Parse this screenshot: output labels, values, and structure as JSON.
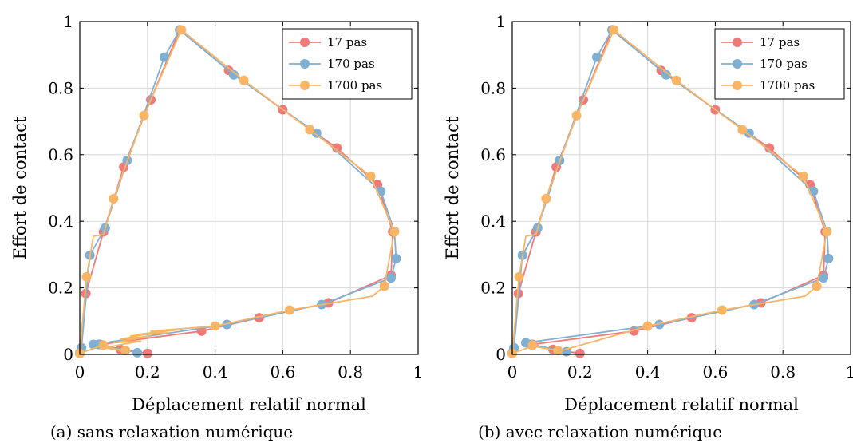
{
  "figure": {
    "captions": [
      "(a) sans relaxation numérique",
      "(b) avec relaxation numérique"
    ]
  },
  "chart_data": [
    {
      "type": "line",
      "title": "",
      "caption": "(a) sans relaxation numérique",
      "xlabel": "Déplacement relatif normal",
      "ylabel": "Effort de contact",
      "xlim": [
        0,
        1
      ],
      "ylim": [
        0,
        1
      ],
      "xticks": [
        "0",
        "0.2",
        "0.4",
        "0.6",
        "0.8",
        "1"
      ],
      "yticks": [
        "0",
        "0.2",
        "0.4",
        "0.6",
        "0.8",
        "1"
      ],
      "grid": true,
      "legend_position": "top-right",
      "series": [
        {
          "name": "17 pas",
          "color": "#f07a78",
          "points": [
            [
              0.2,
              0.003
            ],
            [
              0.12,
              0.015
            ],
            [
              0.06,
              0.03
            ],
            [
              0.36,
              0.07
            ],
            [
              0.53,
              0.11
            ],
            [
              0.735,
              0.155
            ],
            [
              0.92,
              0.238
            ],
            [
              0.925,
              0.368
            ],
            [
              0.88,
              0.51
            ],
            [
              0.76,
              0.62
            ],
            [
              0.6,
              0.735
            ],
            [
              0.44,
              0.853
            ],
            [
              0.295,
              0.975
            ],
            [
              0.21,
              0.765
            ],
            [
              0.13,
              0.563
            ],
            [
              0.07,
              0.368
            ],
            [
              0.018,
              0.183
            ],
            [
              0.0,
              0.003
            ]
          ]
        },
        {
          "name": "170 pas",
          "color": "#7fb0d3",
          "points": [
            [
              0.17,
              0.005
            ],
            [
              0.055,
              0.03
            ],
            [
              0.04,
              0.03
            ],
            [
              0.435,
              0.09
            ],
            [
              0.715,
              0.15
            ],
            [
              0.92,
              0.23
            ],
            [
              0.935,
              0.288
            ],
            [
              0.93,
              0.37
            ],
            [
              0.89,
              0.49
            ],
            [
              0.7,
              0.665
            ],
            [
              0.455,
              0.84
            ],
            [
              0.295,
              0.975
            ],
            [
              0.25,
              0.893
            ],
            [
              0.14,
              0.583
            ],
            [
              0.075,
              0.38
            ],
            [
              0.03,
              0.298
            ],
            [
              0.005,
              0.02
            ],
            [
              0.0,
              0.005
            ]
          ]
        },
        {
          "name": "1700 pas",
          "color": "#f8b566",
          "points": [
            [
              0.0,
              0.003
            ],
            [
              0.06,
              0.025
            ],
            [
              0.14,
              0.01
            ],
            [
              0.07,
              0.02
            ],
            [
              0.18,
              0.04
            ],
            [
              0.1,
              0.035
            ],
            [
              0.21,
              0.055
            ],
            [
              0.12,
              0.045
            ],
            [
              0.24,
              0.07
            ],
            [
              0.15,
              0.055
            ],
            [
              0.26,
              0.065
            ],
            [
              0.17,
              0.06
            ],
            [
              0.3,
              0.075
            ],
            [
              0.21,
              0.07
            ],
            [
              0.4,
              0.085
            ],
            [
              0.62,
              0.133
            ],
            [
              0.865,
              0.175
            ],
            [
              0.9,
              0.205
            ],
            [
              0.93,
              0.368
            ],
            [
              0.86,
              0.535
            ],
            [
              0.68,
              0.675
            ],
            [
              0.485,
              0.823
            ],
            [
              0.3,
              0.975
            ],
            [
              0.19,
              0.718
            ],
            [
              0.1,
              0.468
            ],
            [
              0.07,
              0.36
            ],
            [
              0.04,
              0.355
            ],
            [
              0.02,
              0.233
            ],
            [
              0.0,
              0.003
            ]
          ],
          "markers": [
            [
              0.0,
              0.003
            ],
            [
              0.07,
              0.028
            ],
            [
              0.135,
              0.012
            ],
            [
              0.4,
              0.085
            ],
            [
              0.62,
              0.133
            ],
            [
              0.9,
              0.205
            ],
            [
              0.93,
              0.368
            ],
            [
              0.86,
              0.535
            ],
            [
              0.68,
              0.675
            ],
            [
              0.485,
              0.823
            ],
            [
              0.3,
              0.975
            ],
            [
              0.19,
              0.718
            ],
            [
              0.1,
              0.468
            ],
            [
              0.02,
              0.233
            ]
          ]
        }
      ]
    },
    {
      "type": "line",
      "title": "",
      "caption": "(b) avec relaxation numérique",
      "xlabel": "Déplacement relatif normal",
      "ylabel": "Effort de contact",
      "xlim": [
        0,
        1
      ],
      "ylim": [
        0,
        1
      ],
      "xticks": [
        "0",
        "0.2",
        "0.4",
        "0.6",
        "0.8",
        "1"
      ],
      "yticks": [
        "0",
        "0.2",
        "0.4",
        "0.6",
        "0.8",
        "1"
      ],
      "grid": true,
      "legend_position": "top-right",
      "series": [
        {
          "name": "17 pas",
          "color": "#f07a78",
          "points": [
            [
              0.2,
              0.003
            ],
            [
              0.12,
              0.015
            ],
            [
              0.06,
              0.03
            ],
            [
              0.36,
              0.07
            ],
            [
              0.53,
              0.11
            ],
            [
              0.735,
              0.155
            ],
            [
              0.92,
              0.238
            ],
            [
              0.925,
              0.368
            ],
            [
              0.88,
              0.51
            ],
            [
              0.76,
              0.62
            ],
            [
              0.6,
              0.735
            ],
            [
              0.44,
              0.853
            ],
            [
              0.295,
              0.975
            ],
            [
              0.21,
              0.765
            ],
            [
              0.13,
              0.563
            ],
            [
              0.07,
              0.368
            ],
            [
              0.018,
              0.183
            ],
            [
              0.0,
              0.003
            ]
          ]
        },
        {
          "name": "170 pas",
          "color": "#7fb0d3",
          "points": [
            [
              0.16,
              0.008
            ],
            [
              0.055,
              0.03
            ],
            [
              0.04,
              0.035
            ],
            [
              0.435,
              0.09
            ],
            [
              0.715,
              0.15
            ],
            [
              0.92,
              0.23
            ],
            [
              0.935,
              0.288
            ],
            [
              0.93,
              0.37
            ],
            [
              0.89,
              0.49
            ],
            [
              0.7,
              0.665
            ],
            [
              0.455,
              0.84
            ],
            [
              0.295,
              0.975
            ],
            [
              0.25,
              0.893
            ],
            [
              0.14,
              0.583
            ],
            [
              0.075,
              0.38
            ],
            [
              0.03,
              0.298
            ],
            [
              0.005,
              0.02
            ],
            [
              0.0,
              0.005
            ]
          ]
        },
        {
          "name": "1700 pas",
          "color": "#f8b566",
          "points": [
            [
              0.0,
              0.003
            ],
            [
              0.06,
              0.025
            ],
            [
              0.13,
              0.012
            ],
            [
              0.14,
              0.01
            ],
            [
              0.28,
              0.05
            ],
            [
              0.4,
              0.085
            ],
            [
              0.62,
              0.133
            ],
            [
              0.865,
              0.175
            ],
            [
              0.9,
              0.205
            ],
            [
              0.93,
              0.368
            ],
            [
              0.86,
              0.535
            ],
            [
              0.68,
              0.675
            ],
            [
              0.485,
              0.823
            ],
            [
              0.3,
              0.975
            ],
            [
              0.19,
              0.718
            ],
            [
              0.1,
              0.468
            ],
            [
              0.07,
              0.36
            ],
            [
              0.04,
              0.355
            ],
            [
              0.02,
              0.233
            ],
            [
              0.0,
              0.003
            ]
          ],
          "markers": [
            [
              0.0,
              0.003
            ],
            [
              0.06,
              0.028
            ],
            [
              0.135,
              0.012
            ],
            [
              0.4,
              0.085
            ],
            [
              0.62,
              0.133
            ],
            [
              0.9,
              0.205
            ],
            [
              0.93,
              0.368
            ],
            [
              0.86,
              0.535
            ],
            [
              0.68,
              0.675
            ],
            [
              0.485,
              0.823
            ],
            [
              0.3,
              0.975
            ],
            [
              0.19,
              0.718
            ],
            [
              0.1,
              0.468
            ],
            [
              0.02,
              0.233
            ]
          ]
        }
      ]
    }
  ]
}
